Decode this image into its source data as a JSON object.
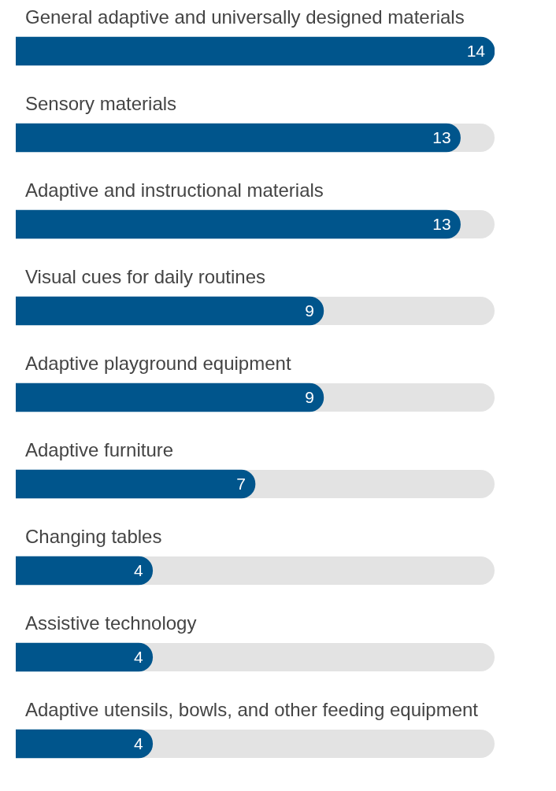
{
  "chart_data": {
    "type": "bar",
    "orientation": "horizontal",
    "categories": [
      "General adaptive and universally designed materials",
      "Sensory materials",
      "Adaptive and instructional materials",
      "Visual cues for daily routines",
      "Adaptive playground equipment",
      "Adaptive furniture",
      "Changing tables",
      "Assistive technology",
      "Adaptive utensils, bowls, and other feeding equipment"
    ],
    "values": [
      14,
      13,
      13,
      9,
      9,
      7,
      4,
      4,
      4
    ],
    "color": "#00558c",
    "xlim": [
      0,
      14
    ],
    "data_labels": true
  }
}
